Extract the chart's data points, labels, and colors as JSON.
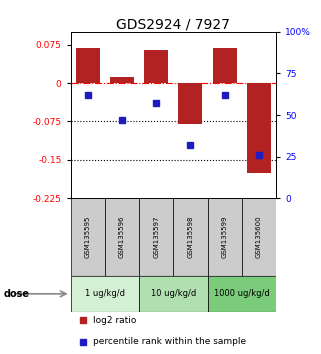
{
  "title": "GDS2924 / 7927",
  "samples": [
    "GSM135595",
    "GSM135596",
    "GSM135597",
    "GSM135598",
    "GSM135599",
    "GSM135600"
  ],
  "log2_ratio": [
    0.068,
    0.012,
    0.065,
    -0.08,
    0.068,
    -0.175
  ],
  "percentile_rank": [
    62,
    47,
    57,
    32,
    62,
    26
  ],
  "ylim_left": [
    -0.225,
    0.1
  ],
  "ylim_right": [
    0,
    100
  ],
  "yticks_left": [
    0.075,
    0,
    -0.075,
    -0.15,
    -0.225
  ],
  "yticks_right": [
    100,
    75,
    50,
    25,
    0
  ],
  "dotted_lines": [
    -0.075,
    -0.15
  ],
  "bar_color": "#b22222",
  "square_color": "#1c1cbf",
  "dose_groups": [
    {
      "label": "1 ug/kg/d",
      "indices": [
        0,
        1
      ],
      "color": "#d4f0d4"
    },
    {
      "label": "10 ug/kg/d",
      "indices": [
        2,
        3
      ],
      "color": "#b0e0b0"
    },
    {
      "label": "1000 ug/kg/d",
      "indices": [
        4,
        5
      ],
      "color": "#7acc7a"
    }
  ],
  "sample_bg_color": "#cccccc",
  "dose_label": "dose",
  "legend_bar_label": "log2 ratio",
  "legend_sq_label": "percentile rank within the sample",
  "title_fontsize": 10,
  "tick_fontsize": 6.5,
  "bar_width": 0.7
}
